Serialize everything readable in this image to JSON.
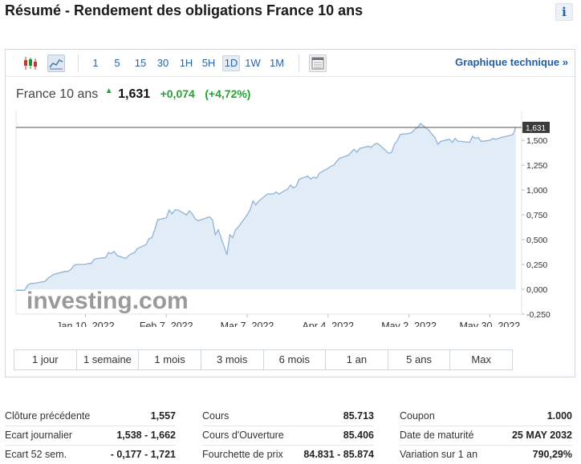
{
  "page": {
    "title": "Résumé - Rendement des obligations France 10 ans",
    "info_icon": "info-icon"
  },
  "toolbar": {
    "icons": [
      "candlestick-icon",
      "area-chart-icon",
      "table-icon"
    ],
    "intervals": [
      "1",
      "5",
      "15",
      "30",
      "1H",
      "5H",
      "1D",
      "1W",
      "1M"
    ],
    "active_interval": "1D",
    "tech_link": "Graphique technique »"
  },
  "quote": {
    "name": "France 10 ans",
    "last": "1,631",
    "change": "+0,074",
    "change_pct": "(+4,72%)",
    "direction": "up",
    "color_up": "#22a432"
  },
  "chart_data": {
    "type": "area",
    "watermark": "investing.com",
    "x_tick_labels": [
      "Jan 10, 2022",
      "Feb 7, 2022",
      "Mar 7, 2022",
      "Apr 4, 2022",
      "May 2, 2022",
      "May 30, 2022"
    ],
    "x_ticks": [
      "2022-01-10",
      "2022-02-07",
      "2022-03-07",
      "2022-04-04",
      "2022-05-02",
      "2022-05-30"
    ],
    "x_range": [
      "2021-12-17",
      "2022-06-10"
    ],
    "y_tick_labels": [
      "1,500",
      "1,250",
      "1,000",
      "0,750",
      "0,500",
      "0,250",
      "0,000",
      "-0,250"
    ],
    "y_ticks": [
      1.5,
      1.25,
      1.0,
      0.75,
      0.5,
      0.25,
      0.0,
      -0.25
    ],
    "ylim": [
      -0.25,
      1.8
    ],
    "last_value": 1.631,
    "last_label": "1,631",
    "colors": {
      "line": "#8fb3d6",
      "fill": "#e2ecf6",
      "ref_line": "#555555",
      "label_bg": "#3b3b3b"
    },
    "series": [
      {
        "x": [
          "2021-12-17",
          "2021-12-20",
          "2021-12-21",
          "2021-12-22",
          "2021-12-23",
          "2021-12-27",
          "2021-12-28",
          "2021-12-29",
          "2021-12-30",
          "2022-01-03",
          "2022-01-04",
          "2022-01-05",
          "2022-01-06",
          "2022-01-07",
          "2022-01-10",
          "2022-01-11",
          "2022-01-12",
          "2022-01-13",
          "2022-01-14",
          "2022-01-17",
          "2022-01-18",
          "2022-01-19",
          "2022-01-20",
          "2022-01-21",
          "2022-01-24",
          "2022-01-25",
          "2022-01-26",
          "2022-01-27",
          "2022-01-28",
          "2022-01-31",
          "2022-02-01",
          "2022-02-02",
          "2022-02-03",
          "2022-02-04",
          "2022-02-07",
          "2022-02-08",
          "2022-02-09",
          "2022-02-10",
          "2022-02-11",
          "2022-02-14",
          "2022-02-15",
          "2022-02-16",
          "2022-02-17",
          "2022-02-18",
          "2022-02-21",
          "2022-02-22",
          "2022-02-23",
          "2022-02-24",
          "2022-02-25",
          "2022-02-28",
          "2022-03-01",
          "2022-03-02",
          "2022-03-03",
          "2022-03-04",
          "2022-03-07",
          "2022-03-08",
          "2022-03-09",
          "2022-03-10",
          "2022-03-11",
          "2022-03-14",
          "2022-03-15",
          "2022-03-16",
          "2022-03-17",
          "2022-03-18",
          "2022-03-21",
          "2022-03-22",
          "2022-03-23",
          "2022-03-24",
          "2022-03-25",
          "2022-03-28",
          "2022-03-29",
          "2022-03-30",
          "2022-03-31",
          "2022-04-01",
          "2022-04-04",
          "2022-04-05",
          "2022-04-06",
          "2022-04-07",
          "2022-04-08",
          "2022-04-11",
          "2022-04-12",
          "2022-04-13",
          "2022-04-14",
          "2022-04-15",
          "2022-04-18",
          "2022-04-19",
          "2022-04-20",
          "2022-04-21",
          "2022-04-22",
          "2022-04-25",
          "2022-04-26",
          "2022-04-27",
          "2022-04-28",
          "2022-04-29",
          "2022-05-02",
          "2022-05-03",
          "2022-05-04",
          "2022-05-05",
          "2022-05-06",
          "2022-05-09",
          "2022-05-10",
          "2022-05-11",
          "2022-05-12",
          "2022-05-13",
          "2022-05-16",
          "2022-05-17",
          "2022-05-18",
          "2022-05-19",
          "2022-05-20",
          "2022-05-23",
          "2022-05-24",
          "2022-05-25",
          "2022-05-26",
          "2022-05-27",
          "2022-05-30",
          "2022-05-31",
          "2022-06-01",
          "2022-06-02",
          "2022-06-03",
          "2022-06-06",
          "2022-06-07",
          "2022-06-08"
        ],
        "values": [
          -0.01,
          -0.01,
          0.04,
          0.06,
          0.06,
          0.08,
          0.11,
          0.13,
          0.15,
          0.18,
          0.18,
          0.2,
          0.24,
          0.25,
          0.25,
          0.26,
          0.26,
          0.3,
          0.31,
          0.32,
          0.37,
          0.36,
          0.38,
          0.34,
          0.31,
          0.34,
          0.36,
          0.37,
          0.41,
          0.45,
          0.51,
          0.52,
          0.6,
          0.7,
          0.72,
          0.8,
          0.76,
          0.8,
          0.8,
          0.75,
          0.79,
          0.76,
          0.71,
          0.69,
          0.72,
          0.73,
          0.7,
          0.55,
          0.6,
          0.35,
          0.55,
          0.52,
          0.6,
          0.63,
          0.75,
          0.8,
          0.89,
          0.85,
          0.89,
          0.96,
          0.96,
          0.96,
          0.98,
          0.96,
          1.01,
          1.05,
          1.02,
          1.04,
          1.11,
          1.14,
          1.11,
          1.13,
          1.12,
          1.17,
          1.22,
          1.24,
          1.25,
          1.29,
          1.32,
          1.35,
          1.38,
          1.41,
          1.38,
          1.42,
          1.44,
          1.43,
          1.46,
          1.47,
          1.45,
          1.37,
          1.38,
          1.46,
          1.5,
          1.56,
          1.57,
          1.58,
          1.61,
          1.63,
          1.67,
          1.6,
          1.56,
          1.53,
          1.46,
          1.49,
          1.51,
          1.48,
          1.52,
          1.49,
          1.49,
          1.48,
          1.54,
          1.52,
          1.53,
          1.49,
          1.5,
          1.52,
          1.51,
          1.52,
          1.53,
          1.55,
          1.56,
          1.631
        ]
      }
    ]
  },
  "ranges": [
    "1 jour",
    "1 semaine",
    "1 mois",
    "3 mois",
    "6 mois",
    "1 an",
    "5 ans",
    "Max"
  ],
  "stats": [
    {
      "rows": [
        {
          "label": "Clôture précédente",
          "value": "1,557"
        },
        {
          "label": "Ecart journalier",
          "value": "1,538 - 1,662"
        },
        {
          "label": "Ecart 52 sem.",
          "value": "- 0,177 - 1,721"
        }
      ]
    },
    {
      "rows": [
        {
          "label": "Cours",
          "value": "85.713"
        },
        {
          "label": "Cours d'Ouverture",
          "value": "85.406"
        },
        {
          "label": "Fourchette de prix",
          "value": "84.831 - 85.874"
        }
      ]
    },
    {
      "rows": [
        {
          "label": "Coupon",
          "value": "1.000"
        },
        {
          "label": "Date de maturité",
          "value": "25 MAY 2032"
        },
        {
          "label": "Variation sur 1 an",
          "value": "790,29%"
        }
      ]
    }
  ]
}
